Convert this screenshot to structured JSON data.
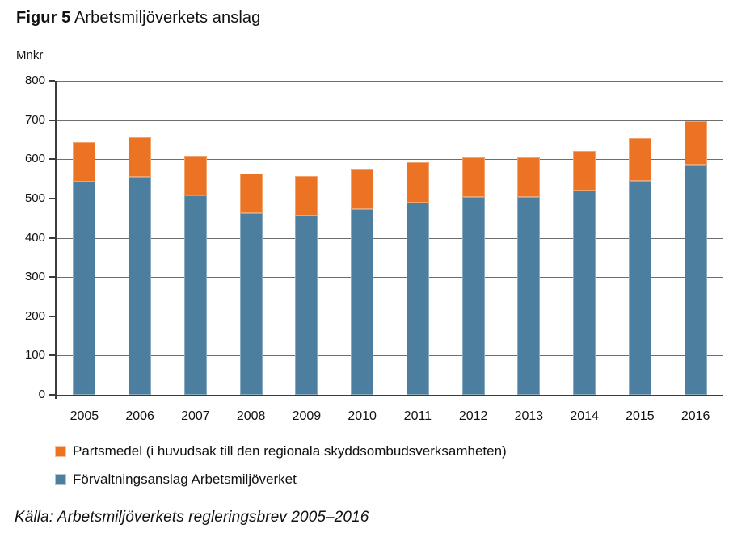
{
  "title": {
    "figure_label": "Figur 5",
    "text": "Arbetsmiljöverkets anslag"
  },
  "chart_data": {
    "type": "bar",
    "stacked": true,
    "title": "Figur 5 Arbetsmiljöverkets anslag",
    "unit_label": "Mnkr",
    "xlabel": "",
    "ylabel": "Mnkr",
    "categories": [
      "2005",
      "2006",
      "2007",
      "2008",
      "2009",
      "2010",
      "2011",
      "2012",
      "2013",
      "2014",
      "2015",
      "2016"
    ],
    "series": [
      {
        "name": "Förvaltningsanslag Arbetsmiljöverket",
        "color": "#4B7E9F",
        "values": [
          543,
          555,
          507,
          462,
          457,
          473,
          489,
          504,
          504,
          520,
          544,
          587
        ]
      },
      {
        "name": "Partsmedel (i huvudsak till den regionala skyddsombudsverksamheten)",
        "color": "#EC7323",
        "values": [
          100,
          100,
          101,
          100,
          101,
          102,
          102,
          101,
          101,
          101,
          110,
          111
        ]
      }
    ],
    "totals": [
      643,
      655,
      608,
      562,
      558,
      575,
      591,
      605,
      605,
      621,
      654,
      698
    ],
    "ylim": [
      0,
      800
    ],
    "ytick_step": 100,
    "grid": true,
    "legend_position": "bottom-left"
  },
  "legend": {
    "items": [
      {
        "label": "Partsmedel (i huvudsak till den regionala skyddsombudsverksamheten)",
        "color": "#EC7323"
      },
      {
        "label": "Förvaltningsanslag Arbetsmiljöverket",
        "color": "#4B7E9F"
      }
    ]
  },
  "source": "Källa: Arbetsmiljöverkets regleringsbrev 2005–2016",
  "colors": {
    "orange": "#EC7323",
    "blue": "#4B7E9F",
    "gridline": "#6e6e6e",
    "axis": "#3b3b3b",
    "text": "#111111"
  }
}
